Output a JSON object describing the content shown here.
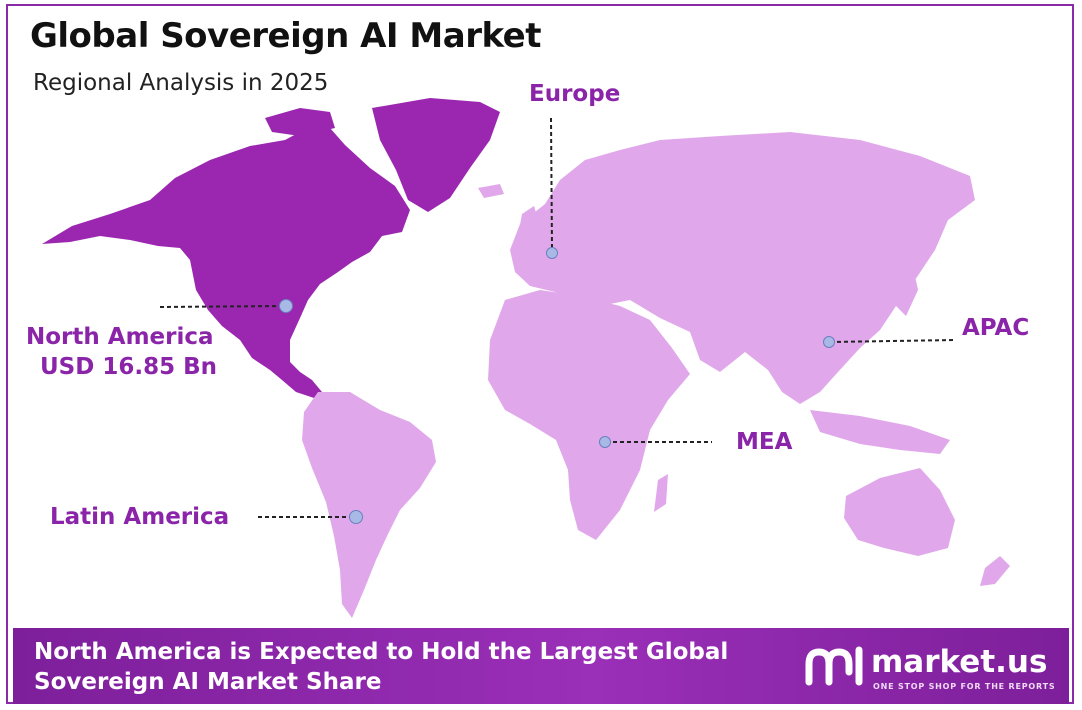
{
  "title": "Global Sovereign AI Market",
  "subtitle": "Regional Analysis in 2025",
  "regions": {
    "europe": "Europe",
    "north_america": "North America",
    "north_america_value": "USD 16.85 Bn",
    "apac": "APAC",
    "mea": "MEA",
    "latin_america": "Latin America"
  },
  "banner": {
    "line1": "North America is Expected to Hold the Largest Global",
    "line2": "Sovereign AI Market Share"
  },
  "logo": {
    "name": "market.us",
    "tagline": "ONE STOP SHOP FOR THE REPORTS"
  },
  "colors": {
    "highlight": "#9b27b0",
    "land": "#e0a8ea",
    "accent": "#8b2aa8",
    "marker": "#a8b9e6"
  }
}
